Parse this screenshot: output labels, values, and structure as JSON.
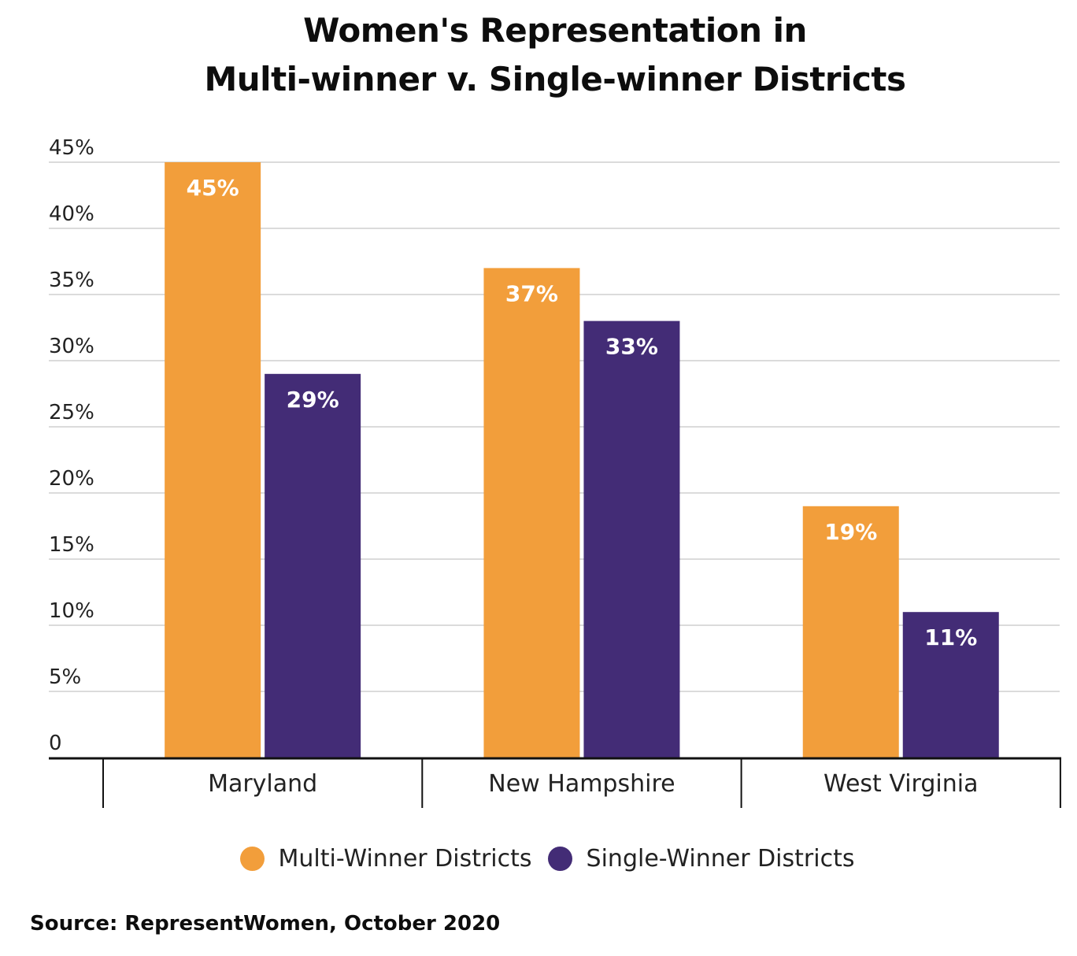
{
  "chart_data": {
    "type": "bar",
    "title": [
      "Women's Representation in",
      "Multi-winner v. Single-winner Districts"
    ],
    "categories": [
      "Maryland",
      "New Hampshire",
      "West Virginia"
    ],
    "series": [
      {
        "name": "Multi-Winner Districts",
        "color": "#F29E3B",
        "values": [
          45,
          37,
          19
        ],
        "labels": [
          "45%",
          "37%",
          "19%"
        ]
      },
      {
        "name": "Single-Winner Districts",
        "color": "#432C76",
        "values": [
          29,
          33,
          11
        ],
        "labels": [
          "29%",
          "33%",
          "11%"
        ]
      }
    ],
    "yticks": [
      "0",
      "5%",
      "10%",
      "15%",
      "20%",
      "25%",
      "30%",
      "35%",
      "40%",
      "45%"
    ],
    "ylim": [
      0,
      45
    ],
    "grid": true,
    "legend_position": "bottom",
    "source": "Source: RepresentWomen, October 2020"
  }
}
